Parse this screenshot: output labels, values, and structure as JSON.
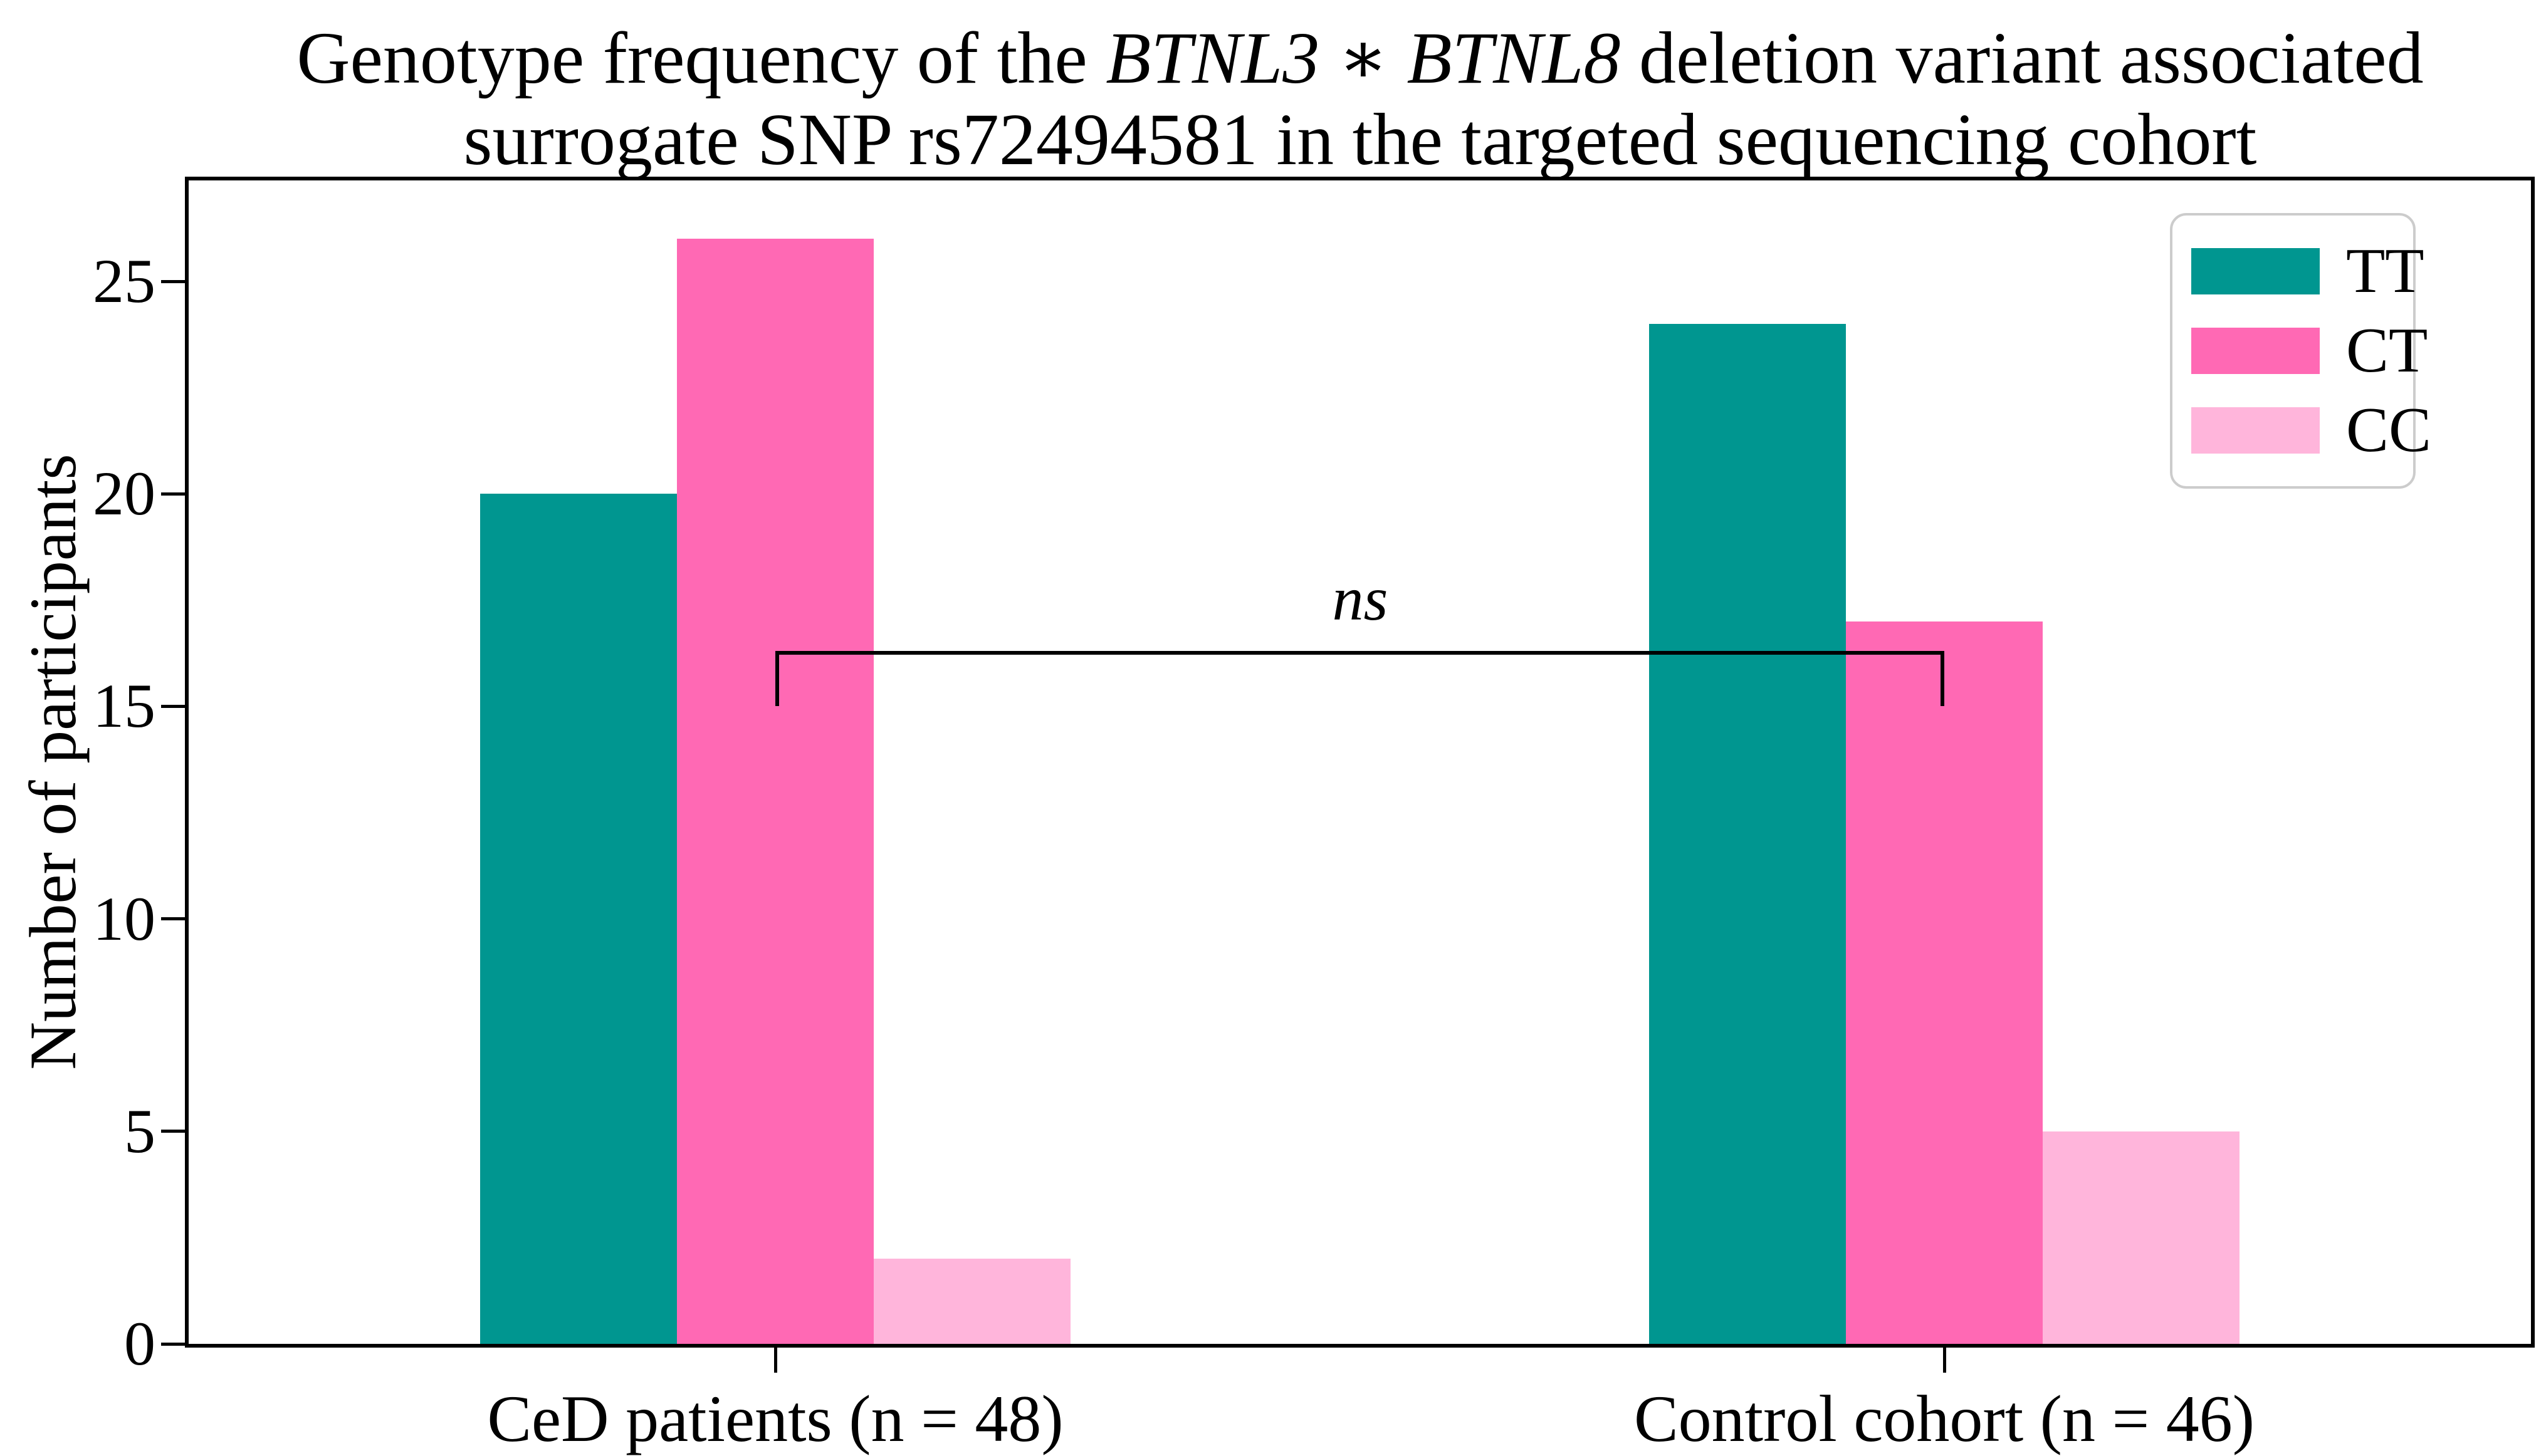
{
  "title": {
    "line1_pre": "Genotype frequency of the ",
    "gene1": "BTNL3",
    "star": " ∗ ",
    "gene2": "BTNL8",
    "line1_post": " deletion variant associated",
    "line2": "surrogate SNP rs72494581 in the targeted sequencing cohort"
  },
  "legend": {
    "items": [
      {
        "label": "TT"
      },
      {
        "label": "CT"
      },
      {
        "label": "CC"
      }
    ]
  },
  "annotation": {
    "label": "ns"
  },
  "chart_data": {
    "type": "bar",
    "title": "Genotype frequency of the BTNL3 ∗ BTNL8 deletion variant associated surrogate SNP rs72494581 in the targeted sequencing cohort",
    "xlabel": "",
    "ylabel": "Number of participants",
    "categories": [
      "CeD patients (n = 48)",
      "Control cohort (n = 46)"
    ],
    "series": [
      {
        "name": "TT",
        "color": "#009690",
        "values": [
          20,
          24
        ]
      },
      {
        "name": "CT",
        "color": "#FF69B4",
        "values": [
          26,
          17
        ]
      },
      {
        "name": "CC",
        "color": "#FFB5DB",
        "values": [
          2,
          5
        ]
      }
    ],
    "yticks": [
      0,
      5,
      10,
      15,
      20,
      25
    ],
    "ylim": [
      0,
      27.4
    ],
    "grid": false,
    "legend_position": "upper right",
    "annotation": {
      "label": "ns",
      "between_categories": [
        0,
        1
      ],
      "bar_y": 16.3,
      "tick_end_y": 15.0
    }
  }
}
